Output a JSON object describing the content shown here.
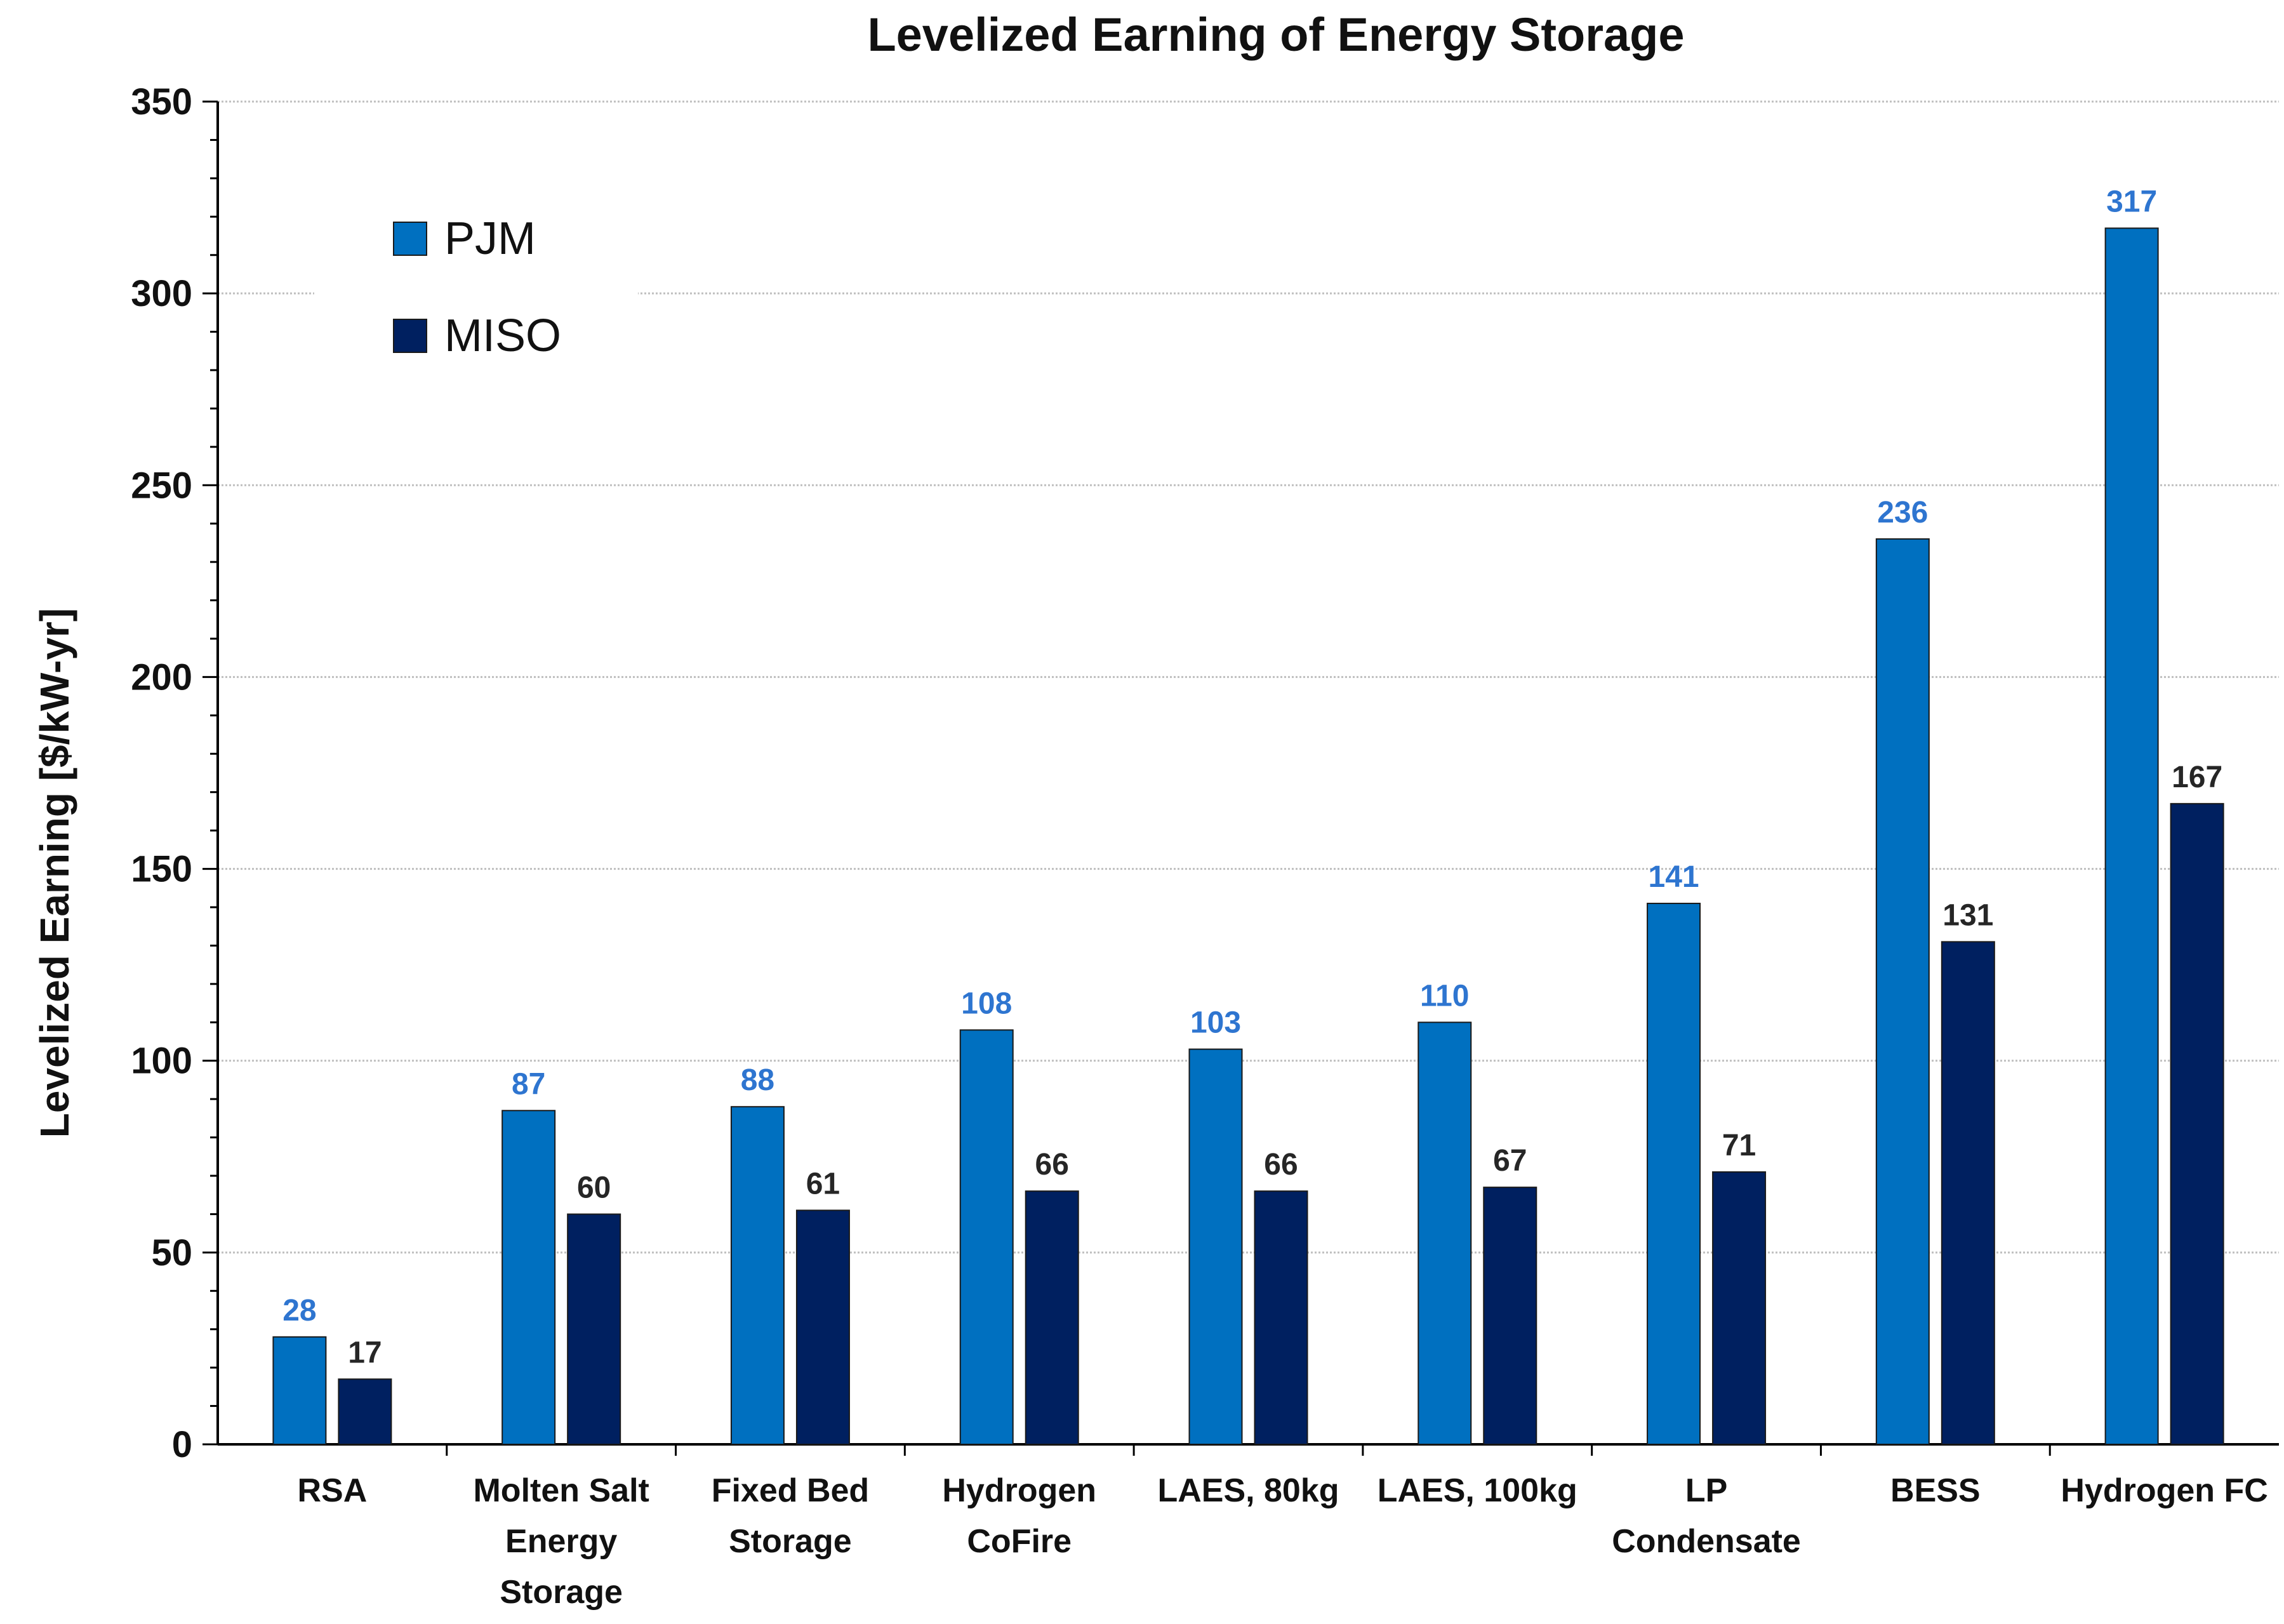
{
  "chart_data": {
    "type": "bar",
    "title": "Levelized Earning of Energy Storage",
    "xlabel": "",
    "ylabel": "Levelized Earning [$/kW-yr]",
    "ylim": [
      0,
      350
    ],
    "yticks": [
      0,
      50,
      100,
      150,
      200,
      250,
      300,
      350
    ],
    "grid": true,
    "legend_position": "top-left",
    "categories": [
      [
        "RSA"
      ],
      [
        "Molten Salt",
        "Energy",
        "Storage"
      ],
      [
        "Fixed Bed",
        "Storage"
      ],
      [
        "Hydrogen",
        "CoFire"
      ],
      [
        "LAES, 80kg"
      ],
      [
        "LAES, 100kg"
      ],
      [
        "LP",
        "Condensate"
      ],
      [
        "BESS"
      ],
      [
        "Hydrogen FC"
      ]
    ],
    "series": [
      {
        "name": "PJM",
        "color": "#0070C0",
        "label_color": "#2E75D0",
        "values": [
          28,
          87,
          88,
          108,
          103,
          110,
          141,
          236,
          317
        ]
      },
      {
        "name": "MISO",
        "color": "#002060",
        "label_color": "#262626",
        "values": [
          17,
          60,
          61,
          66,
          66,
          67,
          71,
          131,
          167
        ]
      }
    ]
  }
}
